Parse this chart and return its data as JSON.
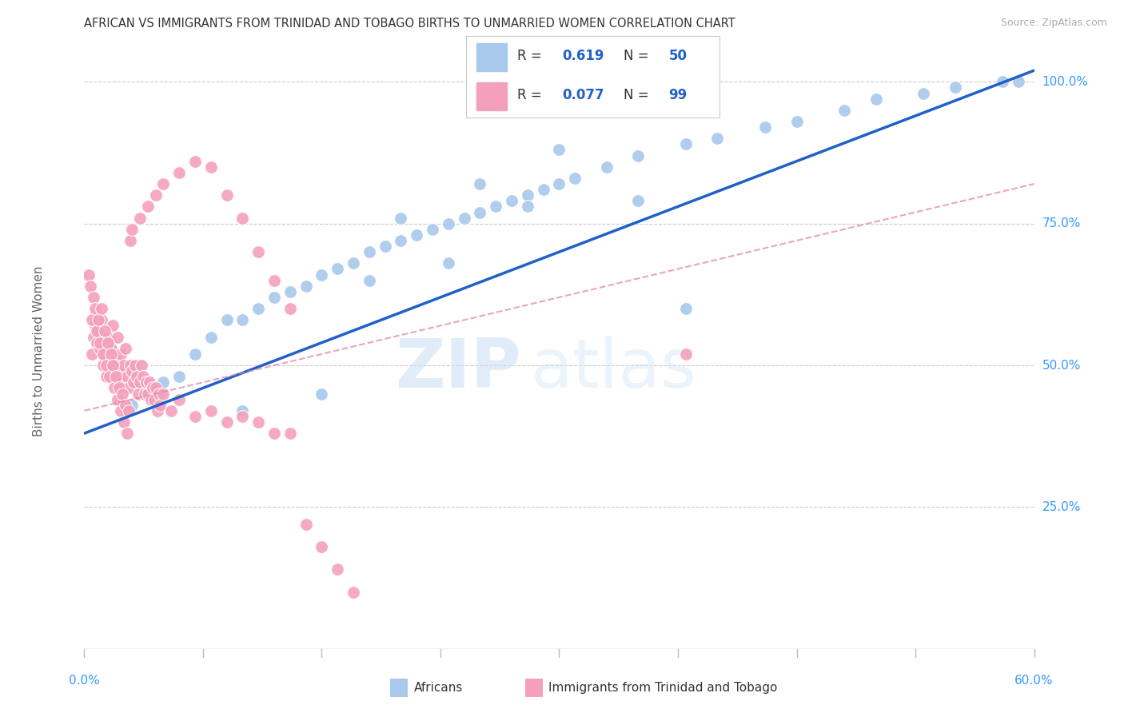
{
  "title": "AFRICAN VS IMMIGRANTS FROM TRINIDAD AND TOBAGO BIRTHS TO UNMARRIED WOMEN CORRELATION CHART",
  "source": "Source: ZipAtlas.com",
  "ylabel": "Births to Unmarried Women",
  "legend_r1": "0.619",
  "legend_n1": "50",
  "legend_r2": "0.077",
  "legend_n2": "99",
  "color_blue": "#A8C8EC",
  "color_pink": "#F4A0BC",
  "color_blue_line": "#2060C8",
  "color_pink_line": "#E080A0",
  "watermark_zip": "ZIP",
  "watermark_atlas": "atlas",
  "blue_x": [
    0.03,
    0.05,
    0.06,
    0.07,
    0.08,
    0.09,
    0.1,
    0.11,
    0.12,
    0.13,
    0.14,
    0.15,
    0.16,
    0.17,
    0.18,
    0.19,
    0.2,
    0.21,
    0.22,
    0.23,
    0.24,
    0.25,
    0.26,
    0.27,
    0.28,
    0.29,
    0.3,
    0.31,
    0.33,
    0.35,
    0.38,
    0.4,
    0.43,
    0.45,
    0.48,
    0.5,
    0.53,
    0.55,
    0.58,
    0.59,
    0.2,
    0.25,
    0.3,
    0.35,
    0.23,
    0.18,
    0.28,
    0.38,
    0.1,
    0.15
  ],
  "blue_y": [
    0.43,
    0.47,
    0.48,
    0.52,
    0.55,
    0.58,
    0.58,
    0.6,
    0.62,
    0.63,
    0.64,
    0.66,
    0.67,
    0.68,
    0.7,
    0.71,
    0.72,
    0.73,
    0.74,
    0.75,
    0.76,
    0.77,
    0.78,
    0.79,
    0.8,
    0.81,
    0.82,
    0.83,
    0.85,
    0.87,
    0.89,
    0.9,
    0.92,
    0.93,
    0.95,
    0.97,
    0.98,
    0.99,
    1.0,
    1.0,
    0.76,
    0.82,
    0.88,
    0.79,
    0.68,
    0.65,
    0.78,
    0.6,
    0.42,
    0.45
  ],
  "pink_x": [
    0.005,
    0.006,
    0.007,
    0.008,
    0.009,
    0.01,
    0.011,
    0.012,
    0.013,
    0.014,
    0.015,
    0.016,
    0.017,
    0.018,
    0.019,
    0.02,
    0.021,
    0.022,
    0.023,
    0.024,
    0.025,
    0.026,
    0.027,
    0.028,
    0.029,
    0.03,
    0.031,
    0.032,
    0.033,
    0.034,
    0.035,
    0.036,
    0.037,
    0.038,
    0.039,
    0.04,
    0.041,
    0.042,
    0.043,
    0.044,
    0.045,
    0.046,
    0.047,
    0.048,
    0.05,
    0.055,
    0.06,
    0.07,
    0.08,
    0.09,
    0.1,
    0.11,
    0.12,
    0.13,
    0.003,
    0.004,
    0.005,
    0.006,
    0.007,
    0.008,
    0.009,
    0.01,
    0.011,
    0.012,
    0.013,
    0.014,
    0.015,
    0.016,
    0.017,
    0.018,
    0.019,
    0.02,
    0.021,
    0.022,
    0.023,
    0.024,
    0.025,
    0.026,
    0.027,
    0.028,
    0.029,
    0.03,
    0.035,
    0.04,
    0.045,
    0.05,
    0.06,
    0.07,
    0.08,
    0.09,
    0.1,
    0.11,
    0.12,
    0.13,
    0.14,
    0.15,
    0.16,
    0.17,
    0.38
  ],
  "pink_y": [
    0.52,
    0.55,
    0.57,
    0.54,
    0.56,
    0.53,
    0.58,
    0.5,
    0.52,
    0.48,
    0.55,
    0.5,
    0.53,
    0.57,
    0.48,
    0.51,
    0.55,
    0.49,
    0.52,
    0.47,
    0.5,
    0.53,
    0.48,
    0.46,
    0.5,
    0.49,
    0.47,
    0.5,
    0.48,
    0.45,
    0.47,
    0.5,
    0.48,
    0.45,
    0.47,
    0.45,
    0.47,
    0.44,
    0.46,
    0.44,
    0.46,
    0.42,
    0.45,
    0.43,
    0.45,
    0.42,
    0.44,
    0.41,
    0.42,
    0.4,
    0.41,
    0.4,
    0.38,
    0.38,
    0.66,
    0.64,
    0.58,
    0.62,
    0.6,
    0.56,
    0.58,
    0.54,
    0.6,
    0.52,
    0.56,
    0.5,
    0.54,
    0.48,
    0.52,
    0.5,
    0.46,
    0.48,
    0.44,
    0.46,
    0.42,
    0.45,
    0.4,
    0.43,
    0.38,
    0.42,
    0.72,
    0.74,
    0.76,
    0.78,
    0.8,
    0.82,
    0.84,
    0.86,
    0.85,
    0.8,
    0.76,
    0.7,
    0.65,
    0.6,
    0.22,
    0.18,
    0.14,
    0.1,
    0.52
  ],
  "xmin": 0.0,
  "xmax": 0.6,
  "ymin": 0.0,
  "ymax": 1.05
}
